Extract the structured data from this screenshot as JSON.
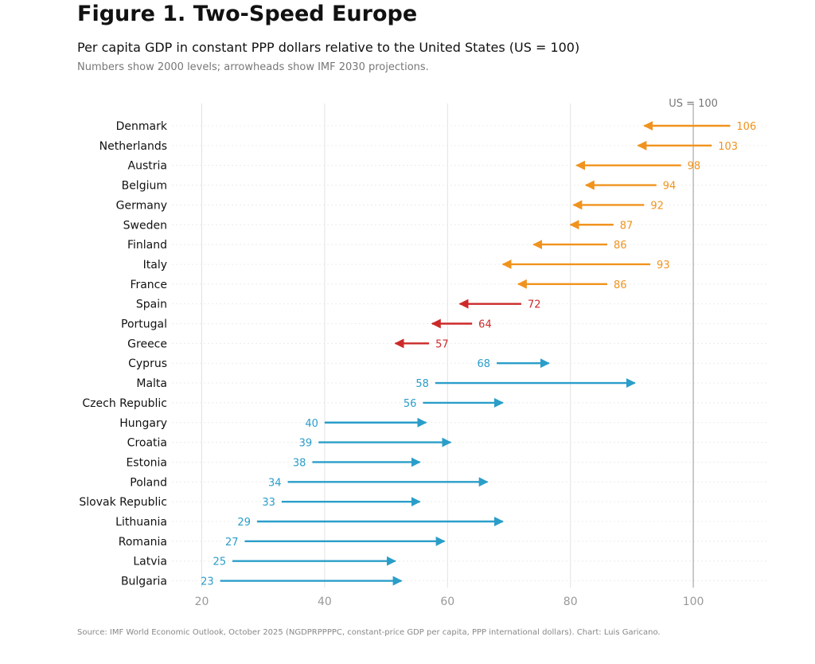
{
  "title": "Figure 1. Two-Speed Europe",
  "subtitle": "Per capita GDP in constant PPP dollars relative to the United States (US = 100)",
  "note": "Numbers show 2000 levels; arrowheads show IMF 2030 projections.",
  "source": "Source: IMF World Economic Outlook, October 2025 (NGDPRPPPPC, constant-price GDP per capita, PPP international dollars). Chart: Luis Garicano.",
  "chart_data": {
    "type": "dumbbell-arrow",
    "reference_line": {
      "value": 100,
      "label": "US = 100"
    },
    "x_ticks": [
      20,
      40,
      60,
      80,
      100
    ],
    "xlim": [
      15,
      112
    ],
    "grid": "vertical",
    "series": [
      {
        "name": "2000",
        "marker": "number label"
      },
      {
        "name": "2030",
        "marker": "arrowhead"
      }
    ],
    "colors": {
      "decline": "#f0931e",
      "decline_south": "#cc2a2a",
      "converge": "#2a9ec9"
    },
    "rows": [
      {
        "country": "Denmark",
        "v2000": 106,
        "v2030": 92,
        "group": "decline"
      },
      {
        "country": "Netherlands",
        "v2000": 103,
        "v2030": 91,
        "group": "decline"
      },
      {
        "country": "Austria",
        "v2000": 98,
        "v2030": 81,
        "group": "decline"
      },
      {
        "country": "Belgium",
        "v2000": 94,
        "v2030": 82.5,
        "group": "decline"
      },
      {
        "country": "Germany",
        "v2000": 92,
        "v2030": 80.5,
        "group": "decline"
      },
      {
        "country": "Sweden",
        "v2000": 87,
        "v2030": 80,
        "group": "decline"
      },
      {
        "country": "Finland",
        "v2000": 86,
        "v2030": 74,
        "group": "decline"
      },
      {
        "country": "Italy",
        "v2000": 93,
        "v2030": 69,
        "group": "decline"
      },
      {
        "country": "France",
        "v2000": 86,
        "v2030": 71.5,
        "group": "decline"
      },
      {
        "country": "Spain",
        "v2000": 72,
        "v2030": 62,
        "group": "decline_south"
      },
      {
        "country": "Portugal",
        "v2000": 64,
        "v2030": 57.5,
        "group": "decline_south"
      },
      {
        "country": "Greece",
        "v2000": 57,
        "v2030": 51.5,
        "group": "decline_south"
      },
      {
        "country": "Cyprus",
        "v2000": 68,
        "v2030": 76.5,
        "group": "converge"
      },
      {
        "country": "Malta",
        "v2000": 58,
        "v2030": 90.5,
        "group": "converge"
      },
      {
        "country": "Czech Republic",
        "v2000": 56,
        "v2030": 69,
        "group": "converge"
      },
      {
        "country": "Hungary",
        "v2000": 40,
        "v2030": 56.5,
        "group": "converge"
      },
      {
        "country": "Croatia",
        "v2000": 39,
        "v2030": 60.5,
        "group": "converge"
      },
      {
        "country": "Estonia",
        "v2000": 38,
        "v2030": 55.5,
        "group": "converge"
      },
      {
        "country": "Poland",
        "v2000": 34,
        "v2030": 66.5,
        "group": "converge"
      },
      {
        "country": "Slovak Republic",
        "v2000": 33,
        "v2030": 55.5,
        "group": "converge"
      },
      {
        "country": "Lithuania",
        "v2000": 29,
        "v2030": 69,
        "group": "converge"
      },
      {
        "country": "Romania",
        "v2000": 27,
        "v2030": 59.5,
        "group": "converge"
      },
      {
        "country": "Latvia",
        "v2000": 25,
        "v2030": 51.5,
        "group": "converge"
      },
      {
        "country": "Bulgaria",
        "v2000": 23,
        "v2030": 52.5,
        "group": "converge"
      }
    ]
  }
}
